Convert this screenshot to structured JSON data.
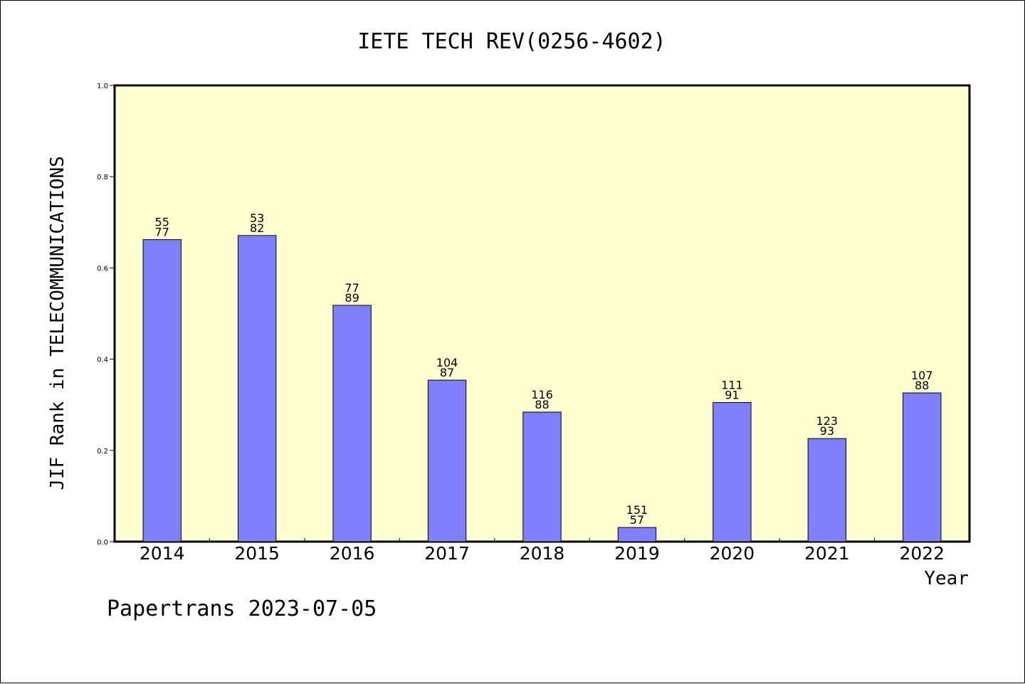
{
  "chart_data": {
    "type": "bar",
    "title": "IETE TECH REV(0256-4602)",
    "xlabel": "Year",
    "ylabel": "JIF Rank in TELECOMMUNICATIONS",
    "footer": "Papertrans 2023-07-05",
    "ylim": [
      0,
      1.0
    ],
    "yticks": [
      "0.0",
      "0.2",
      "0.4",
      "0.6",
      "0.8",
      "1.0"
    ],
    "categories": [
      "2014",
      "2015",
      "2016",
      "2017",
      "2018",
      "2019",
      "2020",
      "2021",
      "2022"
    ],
    "values": [
      0.662,
      0.671,
      0.518,
      0.354,
      0.284,
      0.031,
      0.305,
      0.226,
      0.326
    ],
    "labels_top": [
      "55",
      "53",
      "77",
      "104",
      "116",
      "151",
      "111",
      "123",
      "107"
    ],
    "labels_bottom": [
      "77",
      "82",
      "89",
      "87",
      "88",
      "57",
      "91",
      "93",
      "88"
    ],
    "colors": {
      "plot_background": "#ffffd2",
      "bar_fill": "#8080ff",
      "bar_stroke": "#000000",
      "axis": "#000000"
    }
  }
}
